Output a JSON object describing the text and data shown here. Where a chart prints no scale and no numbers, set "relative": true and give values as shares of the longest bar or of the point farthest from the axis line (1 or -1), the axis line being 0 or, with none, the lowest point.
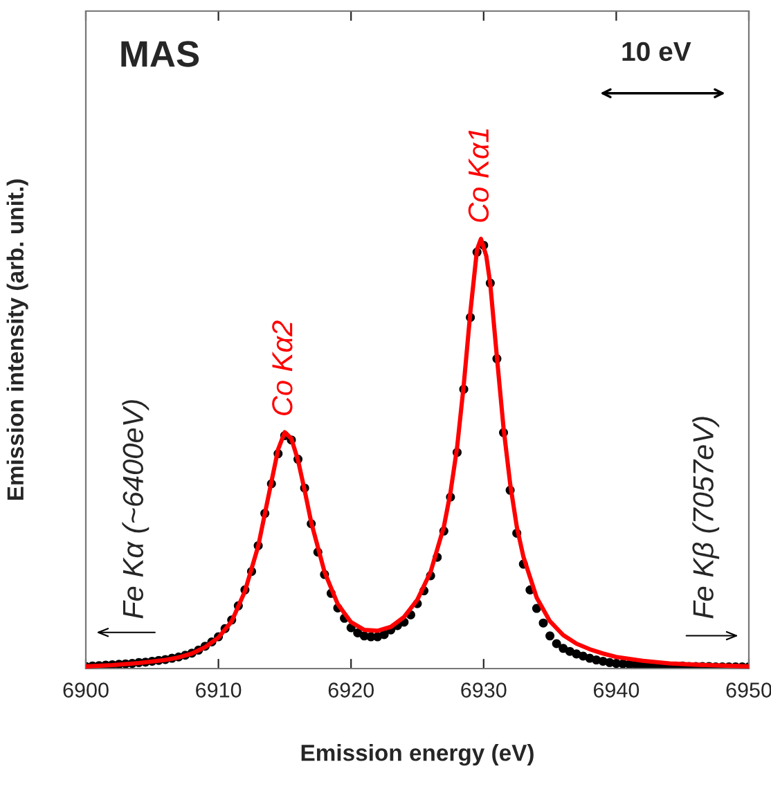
{
  "chart_data": {
    "type": "line",
    "relative": true,
    "xlabel": "Emission energy (eV)",
    "ylabel": "Emission intensity (arb. unit.)",
    "xlim": [
      6900,
      6950
    ],
    "xticks": [
      6900,
      6910,
      6920,
      6930,
      6940,
      6950
    ],
    "grid": false,
    "legend": false,
    "series": [
      {
        "type": "scatter",
        "marker": "circle",
        "color": "#000000",
        "x": [
          6900,
          6900.5,
          6901,
          6901.5,
          6902,
          6902.5,
          6903,
          6903.5,
          6904,
          6904.5,
          6905,
          6905.5,
          6906,
          6906.5,
          6907,
          6907.5,
          6908,
          6908.5,
          6909,
          6909.5,
          6910,
          6910.5,
          6911,
          6911.5,
          6912,
          6912.5,
          6913,
          6913.5,
          6914,
          6914.5,
          6915,
          6915.5,
          6916,
          6916.5,
          6917,
          6917.5,
          6918,
          6918.5,
          6919,
          6919.5,
          6920,
          6920.5,
          6921,
          6921.5,
          6922,
          6922.5,
          6923,
          6923.5,
          6924,
          6924.5,
          6925,
          6925.5,
          6926,
          6926.5,
          6927,
          6927.5,
          6928,
          6928.5,
          6929,
          6929.5,
          6930,
          6930.5,
          6931,
          6931.5,
          6932,
          6932.5,
          6933,
          6933.5,
          6934,
          6934.5,
          6935,
          6935.5,
          6936,
          6936.5,
          6937,
          6937.5,
          6938,
          6938.5,
          6939,
          6939.5,
          6940,
          6940.5,
          6941,
          6941.5,
          6942,
          6942.5,
          6943,
          6943.5,
          6944,
          6944.5,
          6945,
          6945.5,
          6946,
          6946.5,
          6947,
          6947.5,
          6948,
          6948.5,
          6949,
          6949.5,
          6950
        ],
        "values": [
          0.005,
          0.006,
          0.007,
          0.008,
          0.009,
          0.01,
          0.011,
          0.012,
          0.014,
          0.015,
          0.017,
          0.019,
          0.021,
          0.024,
          0.027,
          0.031,
          0.036,
          0.043,
          0.052,
          0.062,
          0.074,
          0.093,
          0.113,
          0.146,
          0.183,
          0.226,
          0.286,
          0.361,
          0.43,
          0.5,
          0.542,
          0.532,
          0.487,
          0.42,
          0.337,
          0.271,
          0.219,
          0.175,
          0.141,
          0.117,
          0.095,
          0.083,
          0.076,
          0.074,
          0.074,
          0.079,
          0.09,
          0.1,
          0.108,
          0.125,
          0.151,
          0.181,
          0.216,
          0.259,
          0.32,
          0.399,
          0.503,
          0.65,
          0.817,
          0.969,
          0.985,
          0.897,
          0.721,
          0.549,
          0.415,
          0.315,
          0.243,
          0.183,
          0.14,
          0.106,
          0.076,
          0.058,
          0.047,
          0.04,
          0.034,
          0.029,
          0.024,
          0.02,
          0.017,
          0.014,
          0.012,
          0.011,
          0.01,
          0.009,
          0.008,
          0.008,
          0.007,
          0.007,
          0.006,
          0.006,
          0.006,
          0.005,
          0.005,
          0.005,
          0.005,
          0.004,
          0.004,
          0.004,
          0.004,
          0.004,
          0.004
        ]
      },
      {
        "marker": "none",
        "color": "#ff0000",
        "line_style": "solid",
        "x": [
          6900,
          6902,
          6904,
          6906,
          6907,
          6908,
          6909,
          6910,
          6911,
          6912,
          6913,
          6913.5,
          6914,
          6914.5,
          6915,
          6915.5,
          6916,
          6916.5,
          6917,
          6918,
          6919,
          6920,
          6921,
          6922,
          6923,
          6924,
          6925,
          6926,
          6927,
          6927.5,
          6928,
          6928.5,
          6929,
          6929.5,
          6929.8,
          6930.2,
          6930.5,
          6931,
          6931.5,
          6932,
          6932.5,
          6933,
          6934,
          6935,
          6936,
          6937,
          6938,
          6939,
          6940,
          6942,
          6944,
          6946,
          6948,
          6950
        ],
        "values": [
          0.005,
          0.008,
          0.013,
          0.02,
          0.026,
          0.035,
          0.05,
          0.072,
          0.11,
          0.18,
          0.285,
          0.36,
          0.435,
          0.51,
          0.55,
          0.535,
          0.485,
          0.415,
          0.34,
          0.225,
          0.15,
          0.108,
          0.09,
          0.088,
          0.097,
          0.12,
          0.16,
          0.225,
          0.33,
          0.41,
          0.515,
          0.66,
          0.83,
          0.975,
          1.0,
          0.96,
          0.895,
          0.725,
          0.56,
          0.43,
          0.33,
          0.26,
          0.165,
          0.11,
          0.078,
          0.058,
          0.045,
          0.035,
          0.027,
          0.018,
          0.012,
          0.009,
          0.007,
          0.005
        ]
      }
    ],
    "annotations": [
      "MAS",
      "10 eV",
      {
        "text": "Co Kα2",
        "x": 6915,
        "y": 0.55
      },
      {
        "text": "Co Kα1",
        "x": 6929.8,
        "y": 1.0
      },
      "Fe Kα (~6400eV)",
      "Fe Kβ (7057eV)"
    ]
  }
}
